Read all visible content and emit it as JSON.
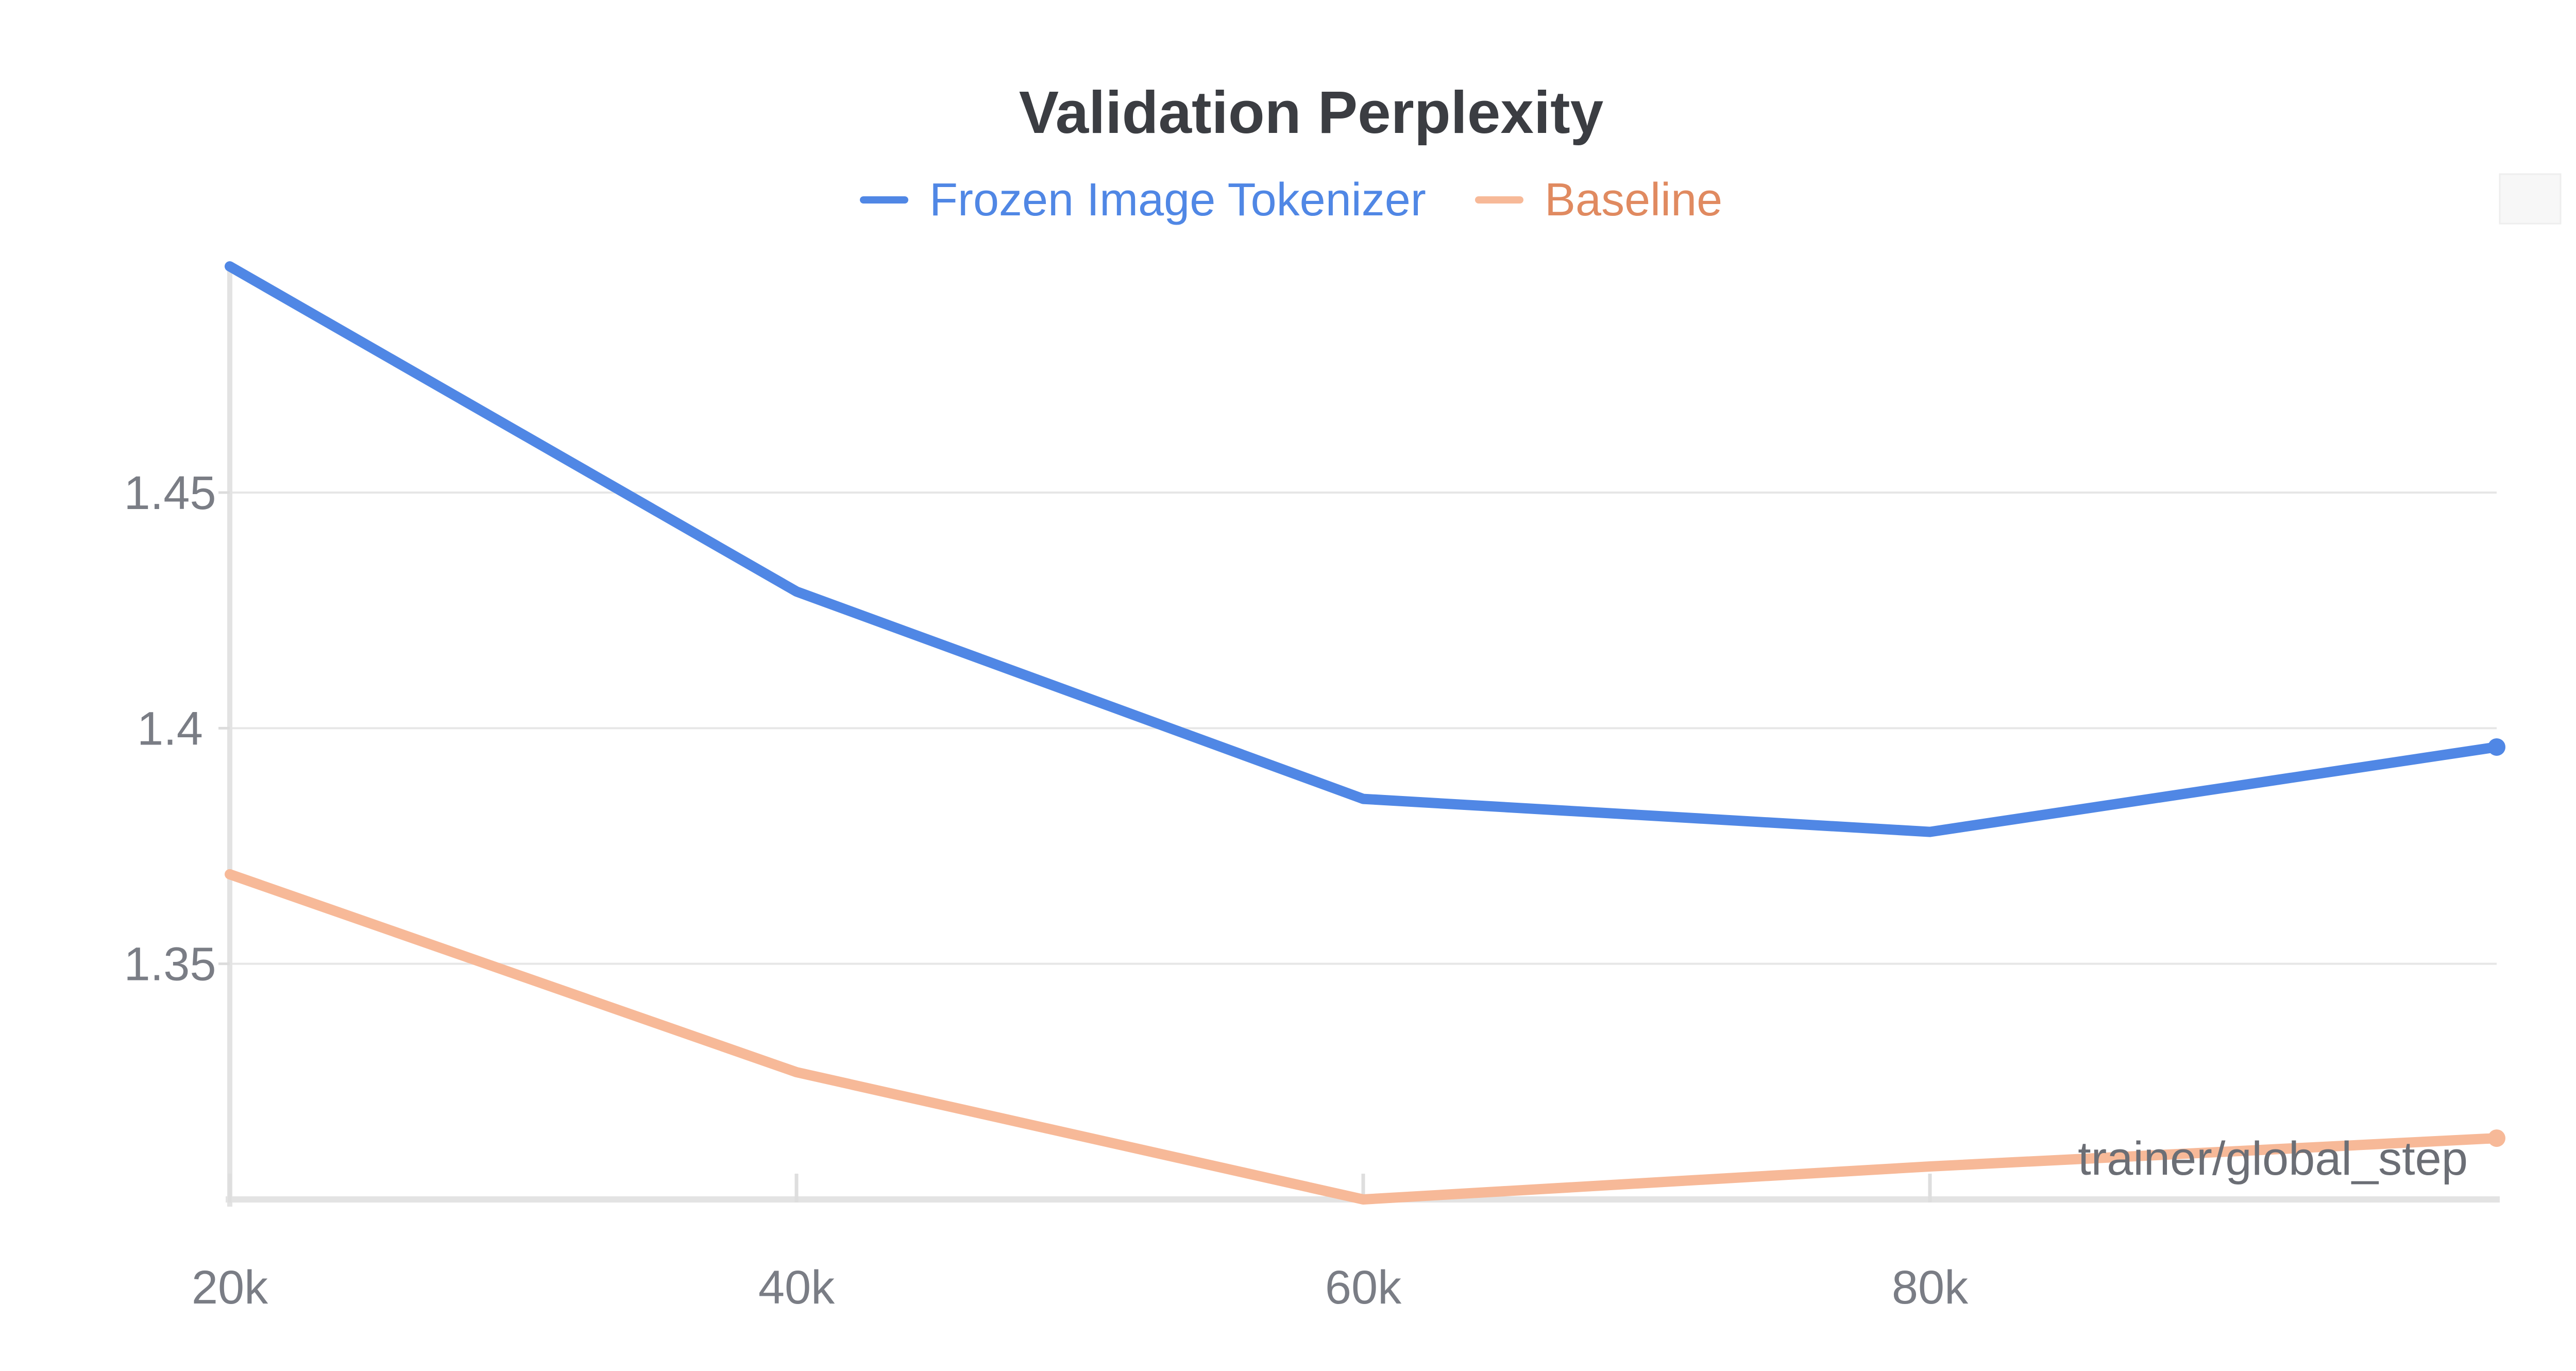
{
  "chart_data": {
    "type": "line",
    "title": "Validation Perplexity",
    "xlabel": "trainer/global_step",
    "ylabel": "",
    "x": [
      20000,
      40000,
      60000,
      80000,
      100000
    ],
    "xlim": [
      20000,
      100000
    ],
    "ylim": [
      1.3,
      1.498
    ],
    "x_ticks": [
      20000,
      40000,
      60000,
      80000
    ],
    "x_tick_labels": [
      "20k",
      "40k",
      "60k",
      "80k"
    ],
    "y_ticks": [
      1.35,
      1.4,
      1.45
    ],
    "y_tick_labels": [
      "1.35",
      "1.4",
      "1.45"
    ],
    "grid": true,
    "legend_position": "top-center",
    "series": [
      {
        "name": "Frozen Image Tokenizer",
        "color": "#5087e5",
        "values": [
          1.498,
          1.429,
          1.385,
          1.378,
          1.396
        ]
      },
      {
        "name": "Baseline",
        "color": "#f7b998",
        "label_color": "#e08a60",
        "values": [
          1.369,
          1.327,
          1.3,
          1.307,
          1.313
        ]
      }
    ]
  }
}
